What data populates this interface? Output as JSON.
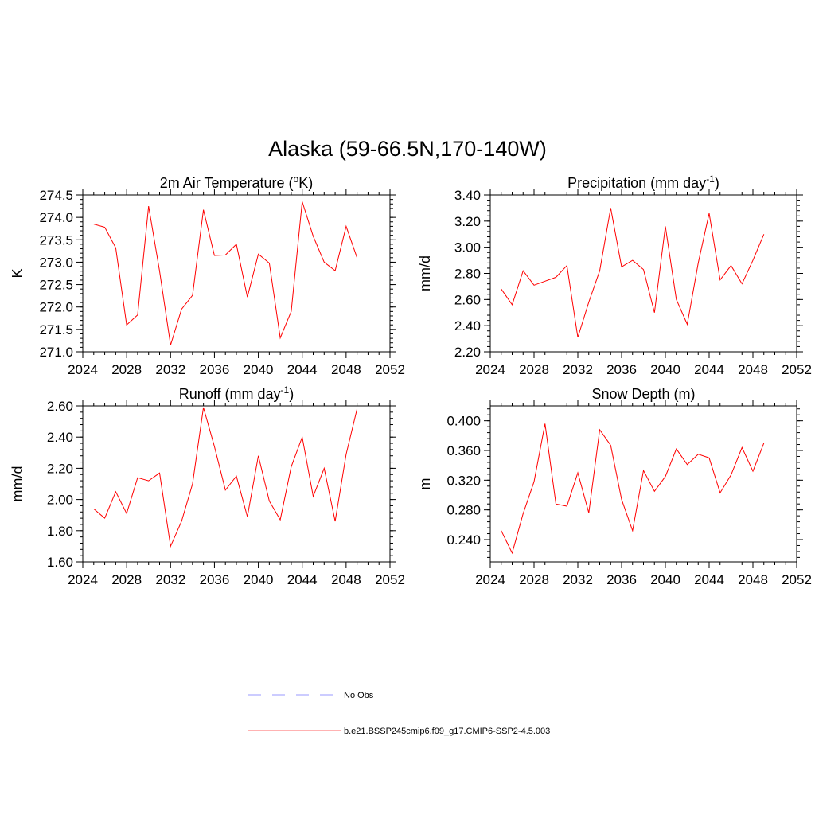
{
  "title": "Alaska (59-66.5N,170-140W)",
  "colors": {
    "model_line": "#ff0000",
    "obs_line": "#9999ff"
  },
  "legend": {
    "items": [
      {
        "label": "No Obs",
        "style": "dashed",
        "color": "#9999ff"
      },
      {
        "label": "b.e21.BSSP245cmip6.f09_g17.CMIP6-SSP2-4.5.003",
        "style": "solid",
        "color": "#ff6666"
      }
    ]
  },
  "chart_data": [
    {
      "type": "line",
      "title": "2m Air Temperature (",
      "title_sup": "o",
      "title_after": "K)",
      "ylabel": "K",
      "xlim": [
        2024,
        2052
      ],
      "ylim": [
        271.0,
        274.5
      ],
      "xticks": [
        "2024",
        "2028",
        "2032",
        "2036",
        "2040",
        "2044",
        "2048",
        "2052"
      ],
      "yticks": [
        "271.0",
        "271.5",
        "272.0",
        "272.5",
        "273.0",
        "273.5",
        "274.0",
        "274.5"
      ],
      "x": [
        2025,
        2026,
        2027,
        2028,
        2029,
        2030,
        2031,
        2032,
        2033,
        2034,
        2035,
        2036,
        2037,
        2038,
        2039,
        2040,
        2041,
        2042,
        2043,
        2044,
        2045,
        2046,
        2047,
        2048,
        2049
      ],
      "values": [
        273.85,
        273.78,
        273.32,
        271.6,
        271.82,
        274.25,
        272.8,
        271.15,
        271.95,
        272.26,
        274.17,
        273.15,
        273.16,
        273.4,
        272.22,
        273.18,
        272.98,
        271.31,
        271.9,
        274.35,
        273.58,
        273.0,
        272.81,
        273.8,
        273.1
      ]
    },
    {
      "type": "line",
      "title": "Precipitation (mm day",
      "title_sup": "-1",
      "title_after": ")",
      "ylabel": "mm/d",
      "xlim": [
        2024,
        2052
      ],
      "ylim": [
        2.2,
        3.4
      ],
      "xticks": [
        "2024",
        "2028",
        "2032",
        "2036",
        "2040",
        "2044",
        "2048",
        "2052"
      ],
      "yticks": [
        "2.20",
        "2.40",
        "2.60",
        "2.80",
        "3.00",
        "3.20",
        "3.40"
      ],
      "x": [
        2025,
        2026,
        2027,
        2028,
        2029,
        2030,
        2031,
        2032,
        2033,
        2034,
        2035,
        2036,
        2037,
        2038,
        2039,
        2040,
        2041,
        2042,
        2043,
        2044,
        2045,
        2046,
        2047,
        2048,
        2049
      ],
      "values": [
        2.68,
        2.56,
        2.82,
        2.71,
        2.74,
        2.77,
        2.86,
        2.31,
        2.58,
        2.82,
        3.3,
        2.85,
        2.9,
        2.83,
        2.5,
        3.16,
        2.6,
        2.41,
        2.88,
        3.26,
        2.75,
        2.86,
        2.72,
        2.9,
        3.1
      ]
    },
    {
      "type": "line",
      "title": "Runoff (mm day",
      "title_sup": "-1",
      "title_after": ")",
      "ylabel": "mm/d",
      "xlim": [
        2024,
        2052
      ],
      "ylim": [
        1.6,
        2.6
      ],
      "xticks": [
        "2024",
        "2028",
        "2032",
        "2036",
        "2040",
        "2044",
        "2048",
        "2052"
      ],
      "yticks": [
        "1.60",
        "1.80",
        "2.00",
        "2.20",
        "2.40",
        "2.60"
      ],
      "x": [
        2025,
        2026,
        2027,
        2028,
        2029,
        2030,
        2031,
        2032,
        2033,
        2034,
        2035,
        2036,
        2037,
        2038,
        2039,
        2040,
        2041,
        2042,
        2043,
        2044,
        2045,
        2046,
        2047,
        2048,
        2049
      ],
      "values": [
        1.94,
        1.88,
        2.05,
        1.91,
        2.14,
        2.12,
        2.17,
        1.7,
        1.86,
        2.1,
        2.59,
        2.34,
        2.06,
        2.15,
        1.89,
        2.28,
        1.99,
        1.87,
        2.21,
        2.4,
        2.02,
        2.2,
        1.86,
        2.29,
        2.58
      ]
    },
    {
      "type": "line",
      "title": "Snow Depth (m)",
      "title_sup": "",
      "title_after": "",
      "ylabel": "m",
      "xlim": [
        2024,
        2052
      ],
      "ylim": [
        0.21,
        0.42
      ],
      "xticks": [
        "2024",
        "2028",
        "2032",
        "2036",
        "2040",
        "2044",
        "2048",
        "2052"
      ],
      "yticks": [
        "0.240",
        "0.280",
        "0.320",
        "0.360",
        "0.400"
      ],
      "ytick_values": [
        0.24,
        0.28,
        0.32,
        0.36,
        0.4
      ],
      "x": [
        2025,
        2026,
        2027,
        2028,
        2029,
        2030,
        2031,
        2032,
        2033,
        2034,
        2035,
        2036,
        2037,
        2038,
        2039,
        2040,
        2041,
        2042,
        2043,
        2044,
        2045,
        2046,
        2047,
        2048,
        2049
      ],
      "values": [
        0.252,
        0.222,
        0.275,
        0.318,
        0.396,
        0.288,
        0.285,
        0.33,
        0.276,
        0.388,
        0.367,
        0.294,
        0.252,
        0.333,
        0.305,
        0.325,
        0.362,
        0.341,
        0.355,
        0.35,
        0.303,
        0.327,
        0.364,
        0.332,
        0.37
      ]
    }
  ]
}
